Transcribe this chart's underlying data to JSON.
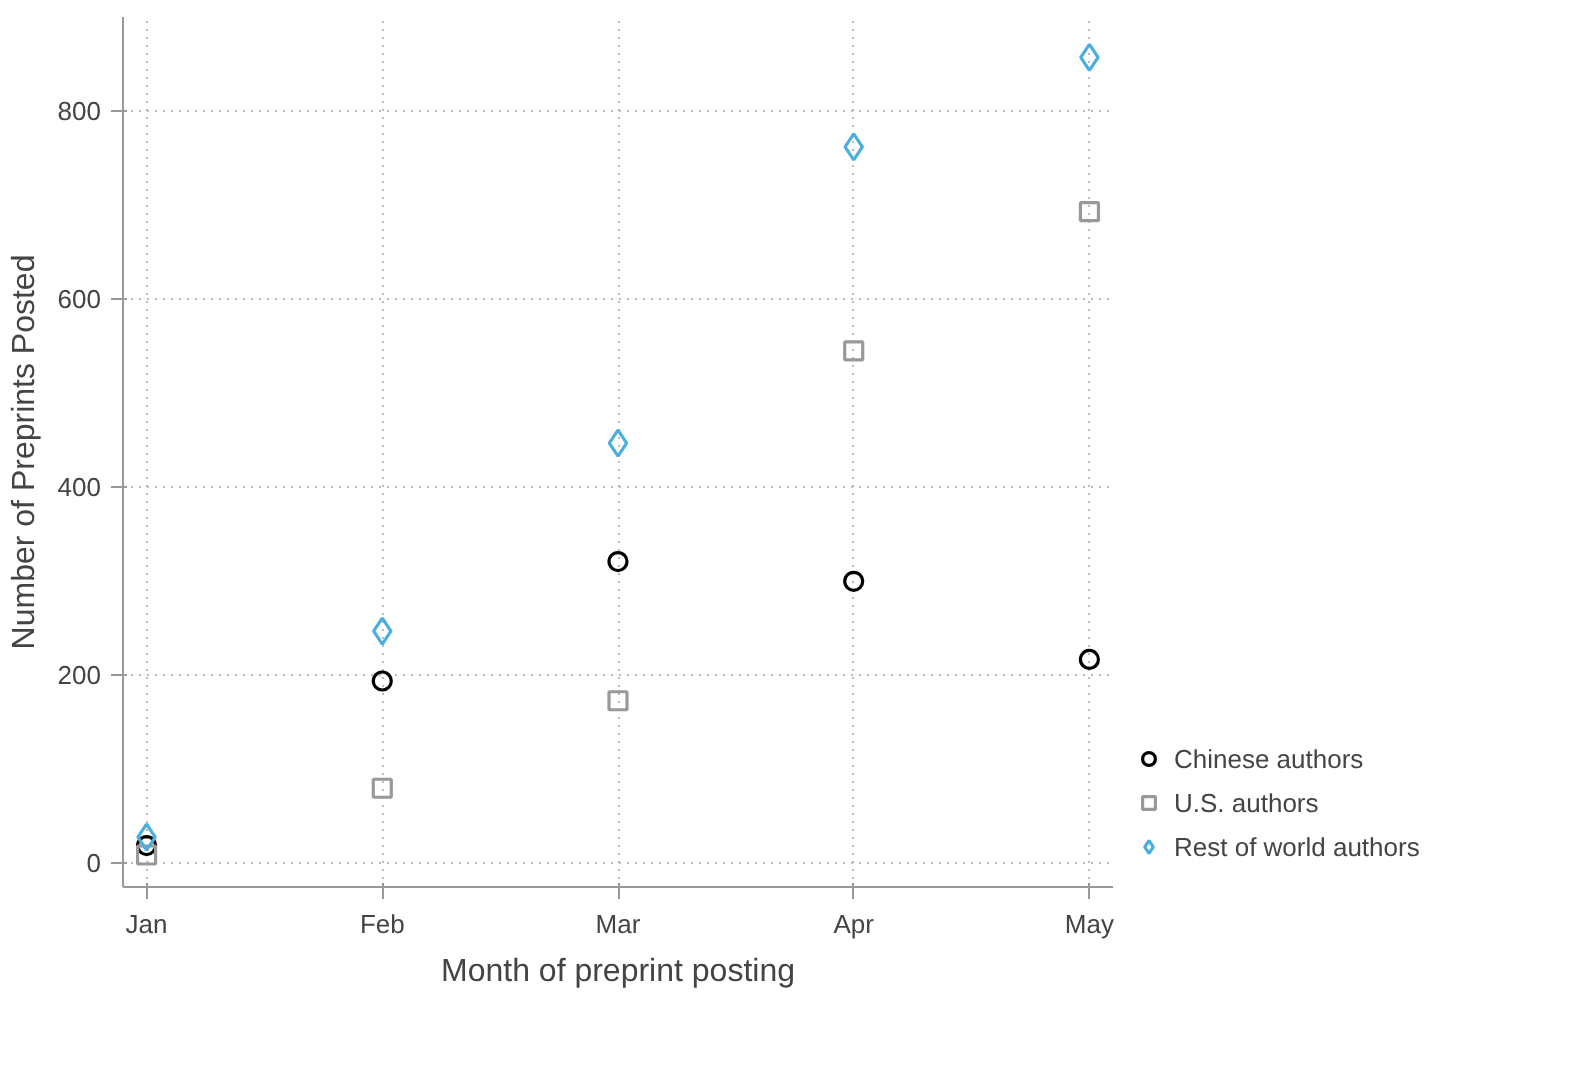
{
  "chart_data": {
    "type": "scatter",
    "xlabel": "Month of preprint posting",
    "ylabel": "Number of Preprints Posted",
    "categories": [
      "Jan",
      "Feb",
      "Mar",
      "Apr",
      "May"
    ],
    "series": [
      {
        "name": "Chinese authors",
        "color": "#000000",
        "marker": "circle",
        "values": [
          19,
          194,
          321,
          300,
          217
        ]
      },
      {
        "name": "U.S. authors",
        "color": "#999999",
        "marker": "square",
        "values": [
          9,
          80,
          173,
          545,
          693
        ]
      },
      {
        "name": "Rest of world authors",
        "color": "#4aaee0",
        "marker": "diamond",
        "values": [
          28,
          247,
          447,
          762,
          857
        ]
      }
    ],
    "ylim": [
      -25,
      900
    ],
    "yticks": [
      0,
      200,
      400,
      600,
      800
    ],
    "grid": true,
    "legend": "right",
    "line_style": "dotted"
  }
}
